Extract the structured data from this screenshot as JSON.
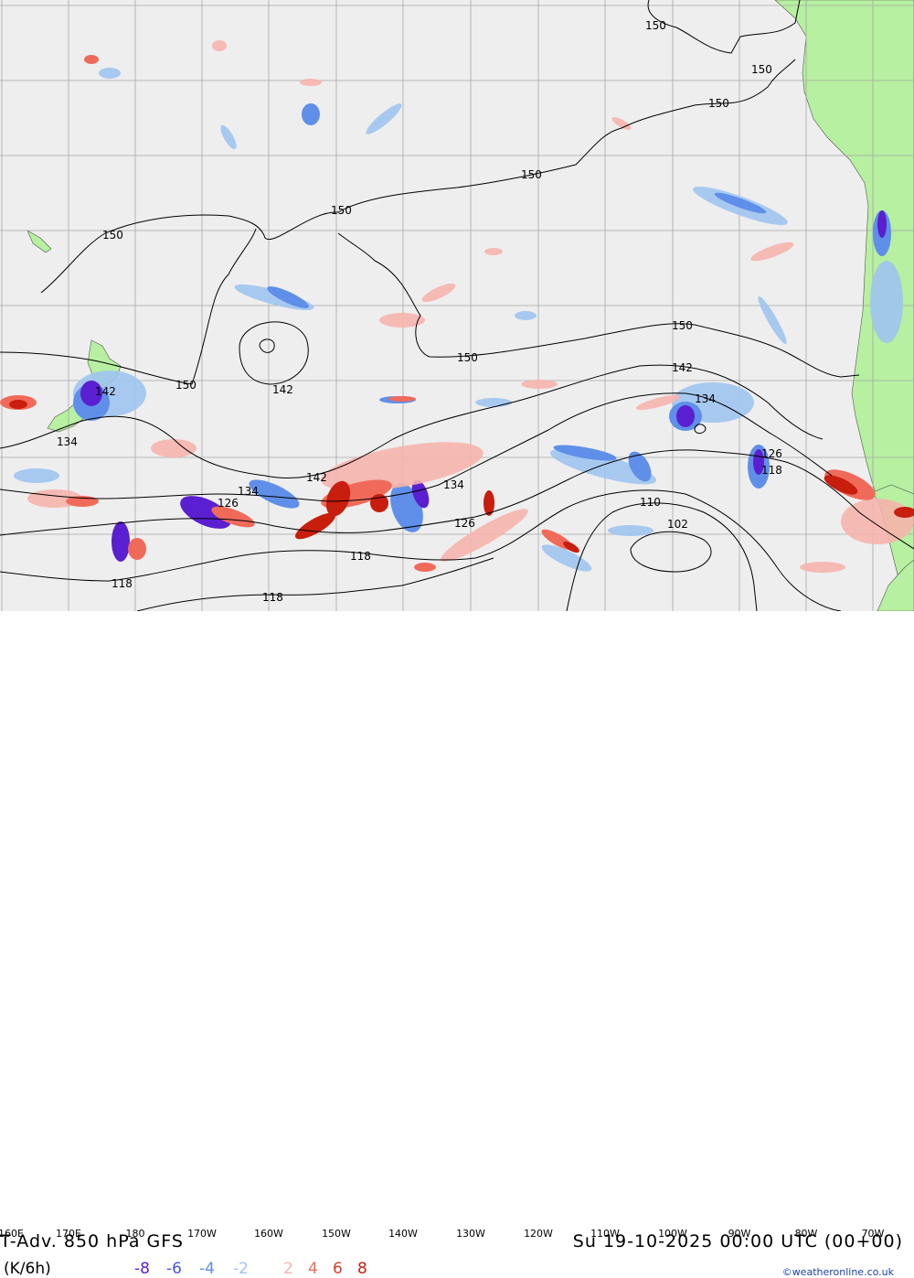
{
  "map": {
    "title": "T-Adv. 850 hPa  GFS",
    "units": "(K/6h)",
    "valid_time": "Su 19-10-2025 00:00 UTC (00+00)",
    "credit": "©weatheronline.co.uk",
    "longitude_labels": [
      "160E",
      "170E",
      "180",
      "170W",
      "160W",
      "150W",
      "140W",
      "130W",
      "120W",
      "110W",
      "100W",
      "90W",
      "80W",
      "70W"
    ],
    "contour_labels": [
      "150",
      "150",
      "150",
      "150",
      "150",
      "150",
      "150",
      "150",
      "150",
      "142",
      "142",
      "142",
      "142",
      "134",
      "134",
      "134",
      "134",
      "126",
      "126",
      "126",
      "118",
      "118",
      "118",
      "118",
      "110",
      "102"
    ],
    "legend": [
      {
        "label": "-8",
        "color": "#5a1fd0"
      },
      {
        "label": "-6",
        "color": "#4a55e0"
      },
      {
        "label": "-4",
        "color": "#5f8fe8"
      },
      {
        "label": "-2",
        "color": "#9fc4f0"
      },
      {
        "label": "2",
        "color": "#f6b4ad"
      },
      {
        "label": "4",
        "color": "#f06a5a"
      },
      {
        "label": "6",
        "color": "#e03a25"
      },
      {
        "label": "8",
        "color": "#c81e0e"
      }
    ],
    "colors": {
      "ocean": "#eeeeee",
      "land": "#b6f0a0",
      "grid": "#a6a6a6",
      "contour": "#000000"
    }
  }
}
